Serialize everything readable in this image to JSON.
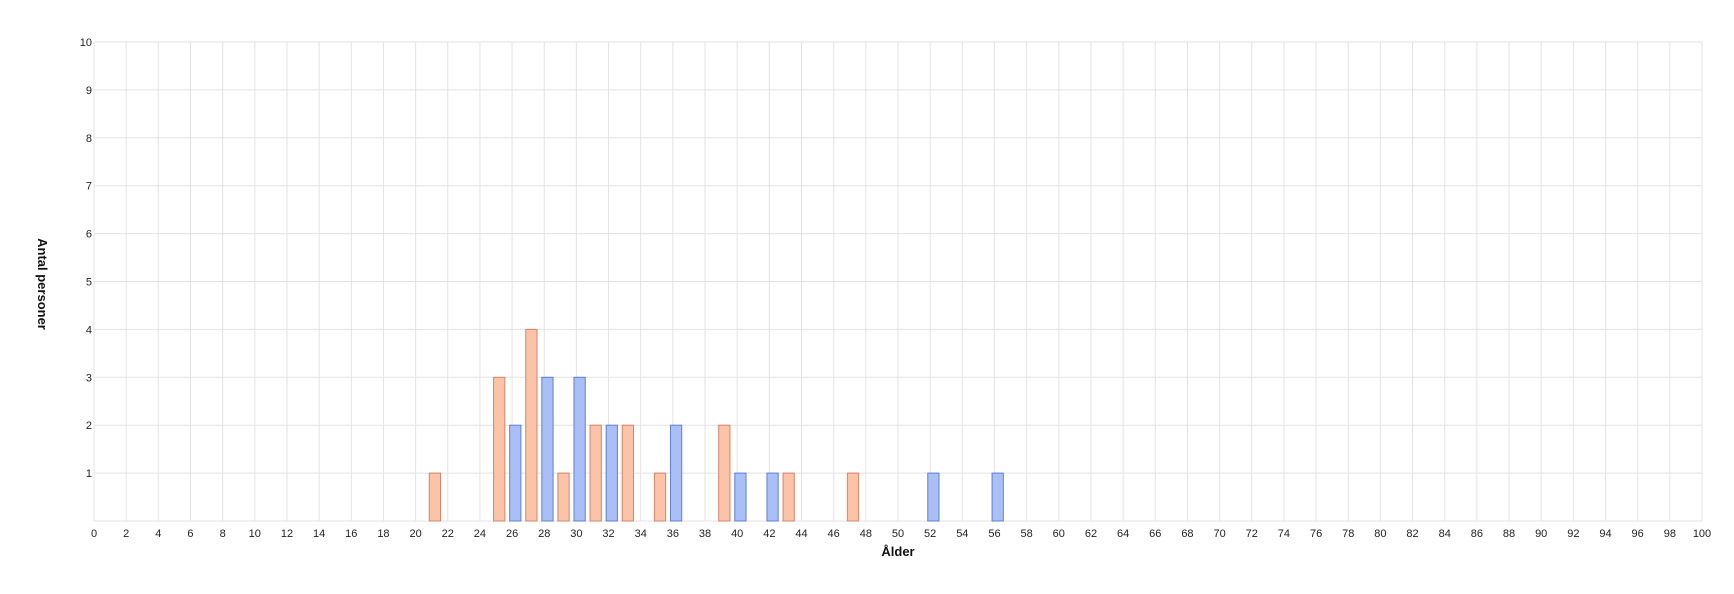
{
  "chart_data": {
    "type": "bar",
    "xlabel": "Ålder",
    "ylabel": "Antal personer",
    "xlim": [
      0,
      100
    ],
    "ylim": [
      0,
      10
    ],
    "x_ticks": [
      0,
      2,
      4,
      6,
      8,
      10,
      12,
      14,
      16,
      18,
      20,
      22,
      24,
      26,
      28,
      30,
      32,
      34,
      36,
      38,
      40,
      42,
      44,
      46,
      48,
      50,
      52,
      54,
      56,
      58,
      60,
      62,
      64,
      66,
      68,
      70,
      72,
      74,
      76,
      78,
      80,
      82,
      84,
      86,
      88,
      90,
      92,
      94,
      96,
      98,
      100
    ],
    "y_ticks": [
      1,
      2,
      3,
      4,
      5,
      6,
      7,
      8,
      9,
      10
    ],
    "grid": true,
    "series": [
      {
        "color": "#fbc4a9",
        "stroke": "#d9826a",
        "points": [
          {
            "x": 21,
            "y": 1
          },
          {
            "x": 25,
            "y": 3
          },
          {
            "x": 27,
            "y": 4
          },
          {
            "x": 29,
            "y": 1
          },
          {
            "x": 31,
            "y": 2
          },
          {
            "x": 33,
            "y": 2
          },
          {
            "x": 35,
            "y": 1
          },
          {
            "x": 39,
            "y": 2
          },
          {
            "x": 43,
            "y": 1
          },
          {
            "x": 47,
            "y": 1
          }
        ]
      },
      {
        "color": "#a9bff5",
        "stroke": "#5f7fd6",
        "points": [
          {
            "x": 26,
            "y": 2
          },
          {
            "x": 28,
            "y": 3
          },
          {
            "x": 30,
            "y": 3
          },
          {
            "x": 32,
            "y": 2
          },
          {
            "x": 36,
            "y": 2
          },
          {
            "x": 40,
            "y": 1
          },
          {
            "x": 42,
            "y": 1
          },
          {
            "x": 52,
            "y": 1
          },
          {
            "x": 56,
            "y": 1
          }
        ]
      }
    ]
  }
}
